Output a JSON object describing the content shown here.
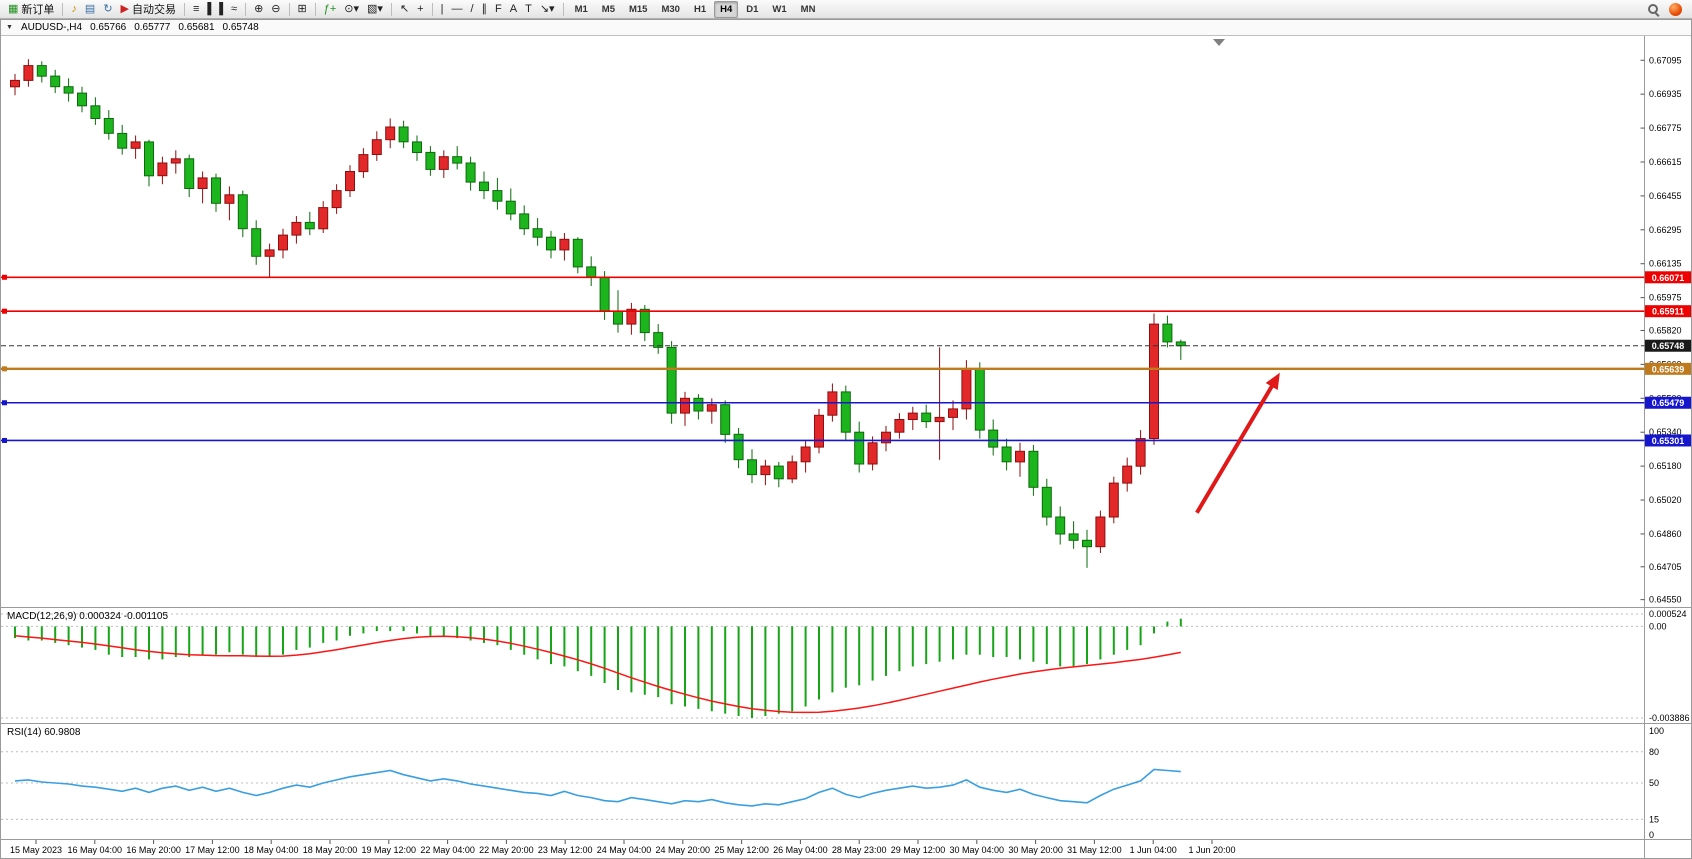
{
  "titlebar": {
    "collapse_glyph": "▼",
    "symbol_period": "AUDUSD-,H4",
    "open": "0.65766",
    "high": "0.65777",
    "low": "0.65681",
    "close": "0.65748"
  },
  "toolbar": {
    "items": [
      {
        "type": "button",
        "name": "new-order-button",
        "glyph": "▦",
        "glyph_color": "#1f8f1f",
        "label": "新订单"
      },
      {
        "type": "sep"
      },
      {
        "type": "button",
        "name": "signals-button",
        "glyph": "♪",
        "glyph_color": "#c99000"
      },
      {
        "type": "button",
        "name": "market-watch-button",
        "glyph": "▤",
        "glyph_color": "#3a6ea5"
      },
      {
        "type": "button",
        "name": "refresh-button",
        "glyph": "↻",
        "glyph_color": "#3a6ea5"
      },
      {
        "type": "button",
        "name": "autotrading-button",
        "glyph": "▶",
        "glyph_color": "#cc2222",
        "label": "自动交易"
      },
      {
        "type": "sep"
      },
      {
        "type": "button",
        "name": "bar-chart-button",
        "glyph": "≡"
      },
      {
        "type": "button",
        "name": "candlestick-chart-button",
        "glyph": "▌▐"
      },
      {
        "type": "button",
        "name": "line-chart-button",
        "glyph": "≈"
      },
      {
        "type": "sep"
      },
      {
        "type": "button",
        "name": "zoom-in-button",
        "glyph": "⊕"
      },
      {
        "type": "button",
        "name": "zoom-out-button",
        "glyph": "⊖"
      },
      {
        "type": "sep"
      },
      {
        "type": "button",
        "name": "tile-windows-button",
        "glyph": "⊞"
      },
      {
        "type": "sep"
      },
      {
        "type": "button",
        "name": "indicators-button",
        "glyph": "ƒ+",
        "glyph_color": "#1f8f1f"
      },
      {
        "type": "button",
        "name": "periods-dropdown-button",
        "glyph": "⊙▾"
      },
      {
        "type": "button",
        "name": "templates-dropdown-button",
        "glyph": "▧▾"
      },
      {
        "type": "sep"
      },
      {
        "type": "button",
        "name": "cursor-button",
        "glyph": "↖"
      },
      {
        "type": "button",
        "name": "crosshair-button",
        "glyph": "+"
      },
      {
        "type": "sep"
      },
      {
        "type": "button",
        "name": "vertical-line-button",
        "glyph": "|"
      },
      {
        "type": "button",
        "name": "horizontal-line-button",
        "glyph": "—"
      },
      {
        "type": "button",
        "name": "trendline-button",
        "glyph": "/"
      },
      {
        "type": "button",
        "name": "channel-button",
        "glyph": "∥"
      },
      {
        "type": "button",
        "name": "fibonacci-button",
        "glyph": "F"
      },
      {
        "type": "button",
        "name": "text-button",
        "glyph": "A"
      },
      {
        "type": "button",
        "name": "text-label-button",
        "glyph": "T"
      },
      {
        "type": "button",
        "name": "arrows-button",
        "glyph": "↘▾"
      },
      {
        "type": "sep"
      }
    ],
    "timeframes": [
      {
        "label": "M1"
      },
      {
        "label": "M5"
      },
      {
        "label": "M15"
      },
      {
        "label": "M30"
      },
      {
        "label": "H1"
      },
      {
        "label": "H4",
        "active": true
      },
      {
        "label": "D1"
      },
      {
        "label": "W1"
      },
      {
        "label": "MN"
      }
    ],
    "right_icons": [
      {
        "name": "search-icon"
      },
      {
        "name": "mql5-community-icon"
      }
    ]
  },
  "colors": {
    "bull": "#e22828",
    "bull_border": "#8e0e0e",
    "bear": "#1db51d",
    "bear_border": "#0b6b0b",
    "macd_histogram": "#17a517",
    "macd_signal": "#ff1414",
    "rsi_line": "#3a9fe0",
    "resistance": "#ee0000",
    "support": "#1616cc",
    "pivot": "#c07a1e",
    "panel_separator": "#9a9a9a"
  },
  "chart_data": {
    "type": "candlestick",
    "symbol": "AUDUSD-",
    "period": "H4",
    "price_range": [
      0.6452,
      0.672
    ],
    "price_axis_ticks": [
      "0.67095",
      "0.66935",
      "0.66775",
      "0.66615",
      "0.66455",
      "0.66295",
      "0.66135",
      "0.65975",
      "0.65820",
      "0.65660",
      "0.65500",
      "0.65340",
      "0.65180",
      "0.65020",
      "0.64860",
      "0.64705",
      "0.64550"
    ],
    "time_axis_labels": [
      "15 May 2023",
      "16 May 04:00",
      "16 May 20:00",
      "17 May 12:00",
      "18 May 04:00",
      "18 May 20:00",
      "19 May 12:00",
      "22 May 04:00",
      "22 May 20:00",
      "23 May 12:00",
      "24 May 04:00",
      "24 May 20:00",
      "25 May 12:00",
      "26 May 04:00",
      "28 May 23:00",
      "29 May 12:00",
      "30 May 04:00",
      "30 May 20:00",
      "31 May 12:00",
      "1 Jun 04:00",
      "1 Jun 20:00"
    ],
    "candles": [
      [
        0.6697,
        0.6703,
        0.6693,
        0.67
      ],
      [
        0.67,
        0.671,
        0.6697,
        0.6707
      ],
      [
        0.6707,
        0.6709,
        0.6699,
        0.6702
      ],
      [
        0.6702,
        0.6705,
        0.6694,
        0.6697
      ],
      [
        0.6697,
        0.6701,
        0.669,
        0.6694
      ],
      [
        0.6694,
        0.6697,
        0.6685,
        0.6688
      ],
      [
        0.6688,
        0.6692,
        0.6679,
        0.6682
      ],
      [
        0.6682,
        0.6686,
        0.6672,
        0.6675
      ],
      [
        0.6675,
        0.6679,
        0.6665,
        0.6668
      ],
      [
        0.6668,
        0.6674,
        0.6663,
        0.6671
      ],
      [
        0.6671,
        0.6672,
        0.665,
        0.6655
      ],
      [
        0.6655,
        0.6664,
        0.6651,
        0.6661
      ],
      [
        0.6661,
        0.6667,
        0.6656,
        0.6663
      ],
      [
        0.6663,
        0.6665,
        0.6645,
        0.6649
      ],
      [
        0.6649,
        0.6657,
        0.6642,
        0.6654
      ],
      [
        0.6654,
        0.6656,
        0.6638,
        0.6642
      ],
      [
        0.6642,
        0.665,
        0.6634,
        0.6646
      ],
      [
        0.6646,
        0.6648,
        0.6626,
        0.663
      ],
      [
        0.663,
        0.6634,
        0.6613,
        0.6617
      ],
      [
        0.6617,
        0.6623,
        0.6607,
        0.662
      ],
      [
        0.662,
        0.663,
        0.6616,
        0.6627
      ],
      [
        0.6627,
        0.6636,
        0.6623,
        0.6633
      ],
      [
        0.6633,
        0.6638,
        0.6627,
        0.663
      ],
      [
        0.663,
        0.6643,
        0.6628,
        0.664
      ],
      [
        0.664,
        0.6651,
        0.6637,
        0.6648
      ],
      [
        0.6648,
        0.666,
        0.6645,
        0.6657
      ],
      [
        0.6657,
        0.6668,
        0.6654,
        0.6665
      ],
      [
        0.6665,
        0.6676,
        0.6662,
        0.6672
      ],
      [
        0.6672,
        0.6682,
        0.6668,
        0.6678
      ],
      [
        0.6678,
        0.6681,
        0.6668,
        0.6671
      ],
      [
        0.6671,
        0.6674,
        0.6662,
        0.6666
      ],
      [
        0.6666,
        0.6669,
        0.6655,
        0.6658
      ],
      [
        0.6658,
        0.6667,
        0.6654,
        0.6664
      ],
      [
        0.6664,
        0.6669,
        0.6658,
        0.6661
      ],
      [
        0.6661,
        0.6664,
        0.6648,
        0.6652
      ],
      [
        0.6652,
        0.6657,
        0.6644,
        0.6648
      ],
      [
        0.6648,
        0.6654,
        0.6639,
        0.6643
      ],
      [
        0.6643,
        0.6649,
        0.6634,
        0.6637
      ],
      [
        0.6637,
        0.6641,
        0.6627,
        0.663
      ],
      [
        0.663,
        0.6635,
        0.6622,
        0.6626
      ],
      [
        0.6626,
        0.6629,
        0.6616,
        0.662
      ],
      [
        0.662,
        0.6628,
        0.6615,
        0.6625
      ],
      [
        0.6625,
        0.6626,
        0.6609,
        0.6612
      ],
      [
        0.6612,
        0.6617,
        0.6603,
        0.6607
      ],
      [
        0.6607,
        0.661,
        0.6587,
        0.6591
      ],
      [
        0.6591,
        0.6601,
        0.6581,
        0.6585
      ],
      [
        0.6585,
        0.6595,
        0.658,
        0.6592
      ],
      [
        0.6592,
        0.6594,
        0.6577,
        0.6581
      ],
      [
        0.6581,
        0.6585,
        0.6571,
        0.6574
      ],
      [
        0.6574,
        0.6577,
        0.6538,
        0.6543
      ],
      [
        0.6543,
        0.6553,
        0.6537,
        0.655
      ],
      [
        0.655,
        0.6552,
        0.654,
        0.6544
      ],
      [
        0.6544,
        0.655,
        0.6538,
        0.6547
      ],
      [
        0.6547,
        0.6549,
        0.6529,
        0.6533
      ],
      [
        0.6533,
        0.6536,
        0.6517,
        0.6521
      ],
      [
        0.6521,
        0.6526,
        0.651,
        0.6514
      ],
      [
        0.6514,
        0.6521,
        0.6509,
        0.6518
      ],
      [
        0.6518,
        0.652,
        0.6508,
        0.6512
      ],
      [
        0.6512,
        0.6523,
        0.651,
        0.652
      ],
      [
        0.652,
        0.653,
        0.6515,
        0.6527
      ],
      [
        0.6527,
        0.6545,
        0.6524,
        0.6542
      ],
      [
        0.6542,
        0.6557,
        0.6539,
        0.6553
      ],
      [
        0.6553,
        0.6556,
        0.653,
        0.6534
      ],
      [
        0.6534,
        0.6539,
        0.6515,
        0.6519
      ],
      [
        0.6519,
        0.6532,
        0.6516,
        0.6529
      ],
      [
        0.6529,
        0.6537,
        0.6525,
        0.6534
      ],
      [
        0.6534,
        0.6543,
        0.6531,
        0.654
      ],
      [
        0.654,
        0.6546,
        0.6535,
        0.6543
      ],
      [
        0.6543,
        0.6547,
        0.6536,
        0.6539
      ],
      [
        0.6539,
        0.6574,
        0.6521,
        0.6541
      ],
      [
        0.6541,
        0.6549,
        0.6535,
        0.6545
      ],
      [
        0.6545,
        0.6568,
        0.654,
        0.6564
      ],
      [
        0.6564,
        0.6567,
        0.6531,
        0.6535
      ],
      [
        0.6535,
        0.654,
        0.6523,
        0.6527
      ],
      [
        0.6527,
        0.6531,
        0.6516,
        0.652
      ],
      [
        0.652,
        0.6529,
        0.6513,
        0.6525
      ],
      [
        0.6525,
        0.6528,
        0.6504,
        0.6508
      ],
      [
        0.6508,
        0.6512,
        0.649,
        0.6494
      ],
      [
        0.6494,
        0.6499,
        0.6481,
        0.6486
      ],
      [
        0.6486,
        0.6492,
        0.6479,
        0.6483
      ],
      [
        0.6483,
        0.6488,
        0.647,
        0.648
      ],
      [
        0.648,
        0.6497,
        0.6477,
        0.6494
      ],
      [
        0.6494,
        0.6513,
        0.6491,
        0.651
      ],
      [
        0.651,
        0.6522,
        0.6506,
        0.6518
      ],
      [
        0.6518,
        0.6535,
        0.6514,
        0.6531
      ],
      [
        0.6531,
        0.659,
        0.6528,
        0.6585
      ],
      [
        0.6585,
        0.6589,
        0.6574,
        0.65766
      ],
      [
        0.65766,
        0.65777,
        0.65681,
        0.65748
      ]
    ],
    "hlines": [
      {
        "name": "resistance-line-1",
        "price": 0.66071,
        "label": "0.66071",
        "color": "#ee0000",
        "thickness": 1.6
      },
      {
        "name": "resistance-line-2",
        "price": 0.65911,
        "label": "0.65911",
        "color": "#ee0000",
        "thickness": 1.6
      },
      {
        "name": "pivot-line",
        "price": 0.65639,
        "label": "0.65639",
        "color": "#c07a1e",
        "thickness": 2.4
      },
      {
        "name": "support-line-1",
        "price": 0.65479,
        "label": "0.65479",
        "color": "#1616cc",
        "thickness": 1.6
      },
      {
        "name": "support-line-2",
        "price": 0.65301,
        "label": "0.65301",
        "color": "#1616cc",
        "thickness": 1.6
      }
    ],
    "bid_line": {
      "price": 0.65748,
      "label": "0.65748",
      "color": "#333333"
    },
    "arrow": {
      "from_bar": 88.2,
      "from_price": 0.6496,
      "to_bar": 94.2,
      "to_price": 0.656,
      "color": "#e01818"
    },
    "indicators": {
      "macd": {
        "label": "MACD(12,26,9)",
        "value_main": "0.000324",
        "value_signal": "-0.001105",
        "axis_labels": [
          "0.000524",
          "0.00",
          "-0.003886"
        ],
        "range": [
          -0.003886,
          0.000524
        ],
        "histogram": [
          -0.0005,
          -0.0006,
          -0.0006,
          -0.0007,
          -0.0008,
          -0.0009,
          -0.001,
          -0.0012,
          -0.0013,
          -0.0013,
          -0.0014,
          -0.0014,
          -0.0013,
          -0.0013,
          -0.0012,
          -0.0012,
          -0.0011,
          -0.0012,
          -0.0013,
          -0.0013,
          -0.0012,
          -0.001,
          -0.0009,
          -0.0007,
          -0.0006,
          -0.0004,
          -0.0003,
          -0.0002,
          -0.0002,
          -0.0002,
          -0.0003,
          -0.0004,
          -0.0004,
          -0.0005,
          -0.0006,
          -0.0007,
          -0.0008,
          -0.001,
          -0.0012,
          -0.0014,
          -0.0016,
          -0.0017,
          -0.0019,
          -0.0021,
          -0.0024,
          -0.0027,
          -0.0028,
          -0.0029,
          -0.003,
          -0.0033,
          -0.0034,
          -0.0035,
          -0.0036,
          -0.0037,
          -0.0038,
          -0.003886,
          -0.0038,
          -0.0037,
          -0.0036,
          -0.0034,
          -0.0031,
          -0.0028,
          -0.0026,
          -0.0025,
          -0.0023,
          -0.0021,
          -0.0019,
          -0.0017,
          -0.0016,
          -0.0015,
          -0.0014,
          -0.0012,
          -0.0012,
          -0.0013,
          -0.0013,
          -0.0014,
          -0.0015,
          -0.0016,
          -0.0017,
          -0.0017,
          -0.0016,
          -0.0014,
          -0.0012,
          -0.001,
          -0.0008,
          -0.0003,
          0.0002,
          0.000324
        ],
        "signal": [
          -0.0004,
          -0.00045,
          -0.0005,
          -0.00056,
          -0.00062,
          -0.00068,
          -0.00075,
          -0.00083,
          -0.00091,
          -0.00099,
          -0.00106,
          -0.00112,
          -0.00117,
          -0.0012,
          -0.00122,
          -0.00124,
          -0.00125,
          -0.00125,
          -0.00126,
          -0.00127,
          -0.00126,
          -0.00122,
          -0.00116,
          -0.00108,
          -0.00099,
          -0.00089,
          -0.00079,
          -0.00069,
          -0.0006,
          -0.00052,
          -0.00046,
          -0.00043,
          -0.00042,
          -0.00044,
          -0.00048,
          -0.00054,
          -0.00062,
          -0.00072,
          -0.00084,
          -0.00097,
          -0.00111,
          -0.00126,
          -0.00142,
          -0.00159,
          -0.00178,
          -0.00198,
          -0.00218,
          -0.00237,
          -0.00255,
          -0.00272,
          -0.00288,
          -0.00303,
          -0.00317,
          -0.00329,
          -0.0034,
          -0.00349,
          -0.00356,
          -0.00361,
          -0.00364,
          -0.00365,
          -0.00364,
          -0.0036,
          -0.00354,
          -0.00346,
          -0.00337,
          -0.00326,
          -0.00314,
          -0.00301,
          -0.00288,
          -0.00275,
          -0.00262,
          -0.00249,
          -0.00236,
          -0.00224,
          -0.00213,
          -0.00202,
          -0.00193,
          -0.00185,
          -0.00178,
          -0.00172,
          -0.00166,
          -0.0016,
          -0.00154,
          -0.00147,
          -0.0014,
          -0.00131,
          -0.00121,
          -0.001105
        ]
      },
      "rsi": {
        "label": "RSI(14)",
        "value": "60.9808",
        "axis_labels": [
          "100",
          "80",
          "50",
          "15",
          "0"
        ],
        "levels": [
          80,
          50,
          15
        ],
        "range": [
          0,
          100
        ],
        "values": [
          52,
          53,
          51,
          50,
          49,
          47,
          46,
          44,
          42,
          45,
          41,
          45,
          47,
          43,
          46,
          42,
          45,
          41,
          38,
          41,
          45,
          48,
          46,
          50,
          53,
          56,
          58,
          60,
          62,
          58,
          55,
          52,
          54,
          52,
          49,
          47,
          45,
          43,
          41,
          40,
          38,
          42,
          38,
          36,
          33,
          32,
          36,
          34,
          32,
          30,
          33,
          32,
          34,
          31,
          29,
          28,
          30,
          29,
          32,
          35,
          41,
          45,
          39,
          36,
          40,
          43,
          45,
          47,
          45,
          46,
          48,
          53,
          46,
          43,
          41,
          44,
          39,
          36,
          33,
          32,
          31,
          38,
          44,
          48,
          52,
          63,
          62,
          60.98
        ]
      }
    }
  }
}
